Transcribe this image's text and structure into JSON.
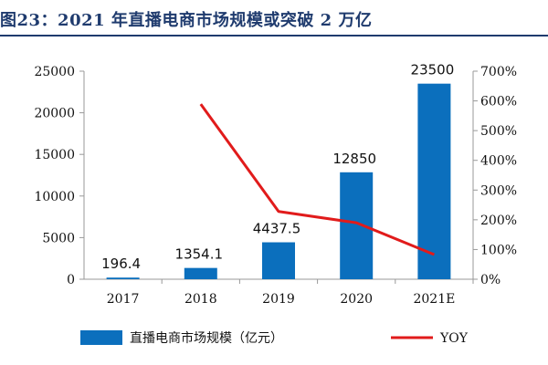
{
  "title": "图23：2021 年直播电商市场规模或突破 2 万亿",
  "chart_data": {
    "type": "bar",
    "categories": [
      "2017",
      "2018",
      "2019",
      "2020",
      "2021E"
    ],
    "series": [
      {
        "name": "直播电商市场规模（亿元）",
        "type": "bar",
        "axis": "left",
        "color": "#0b6fbd",
        "values": [
          196.4,
          1354.1,
          4437.5,
          12850,
          23500
        ],
        "data_labels": [
          "196.4",
          "1354.1",
          "4437.5",
          "12850",
          "23500"
        ]
      },
      {
        "name": "YOY",
        "type": "line",
        "axis": "right",
        "color": "#e11b1b",
        "values": [
          null,
          589,
          228,
          190,
          83
        ]
      }
    ],
    "y_left": {
      "lim": [
        0,
        25000
      ],
      "ticks": [
        "0",
        "5000",
        "10000",
        "15000",
        "20000",
        "25000"
      ]
    },
    "y_right": {
      "lim": [
        0,
        700
      ],
      "ticks": [
        "0%",
        "100%",
        "200%",
        "300%",
        "400%",
        "500%",
        "600%",
        "700%"
      ]
    },
    "grid": false,
    "legend_position": "bottom"
  }
}
